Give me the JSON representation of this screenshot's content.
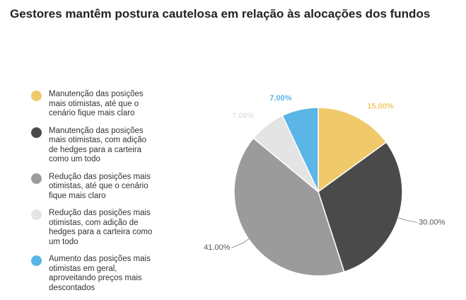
{
  "chart_data": {
    "type": "pie",
    "title": "Gestores mantêm postura cautelosa em relação às alocações dos fundos",
    "categories": [
      "Manutenção das posições mais otimistas, até que o cenário fique mais claro",
      "Manutenção das posições mais otimistas, com adição de hedges para a carteira como um todo",
      "Redução das posições mais otimistas, até que o cenário fique mais claro",
      "Redução das posições mais otimistas, com adição de hedges para a carteira como um todo",
      "Aumento das posições mais otimistas em geral, aproveitando preços mais descontados"
    ],
    "values": [
      15,
      30,
      41,
      7,
      7
    ],
    "value_labels": [
      "15.00%",
      "30.00%",
      "41.00%",
      "7.00%",
      "7.00%"
    ],
    "colors": [
      "#f0c96a",
      "#4a4a4a",
      "#9b9b9b",
      "#e4e4e4",
      "#5bb5e6"
    ],
    "legend": "left"
  }
}
